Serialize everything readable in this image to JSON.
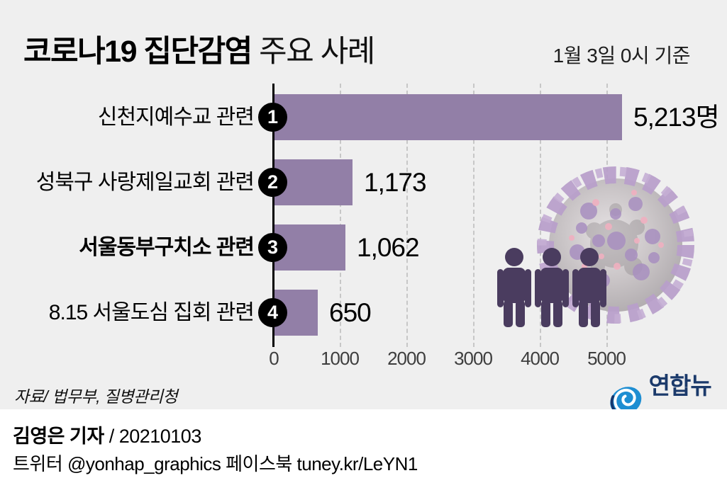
{
  "header": {
    "title_bold": "코로나19 집단감염",
    "title_regular": " 주요 사례",
    "date_note": "1월 3일 0시 기준"
  },
  "chart_data": {
    "type": "bar",
    "orientation": "horizontal",
    "title": "코로나19 집단감염 주요 사례",
    "unit": "명",
    "categories": [
      "신천지예수교 관련",
      "성북구 사랑제일교회 관련",
      "서울동부구치소 관련",
      "8.15 서울도심 집회 관련"
    ],
    "values": [
      5213,
      1173,
      1062,
      650
    ],
    "rows": [
      {
        "rank": "1",
        "label": "신천지예수교 관련",
        "value": 5213,
        "value_label": "5,213명",
        "emphasis": false
      },
      {
        "rank": "2",
        "label": "성북구 사랑제일교회 관련",
        "value": 1173,
        "value_label": "1,173",
        "emphasis": false
      },
      {
        "rank": "3",
        "label": "서울동부구치소 관련",
        "value": 1062,
        "value_label": "1,062",
        "emphasis": true
      },
      {
        "rank": "4",
        "label": "8.15 서울도심 집회 관련",
        "value": 650,
        "value_label": "650",
        "emphasis": false
      }
    ],
    "x_ticks": [
      "0",
      "1000",
      "2000",
      "3000",
      "4000",
      "5000"
    ],
    "xlim": [
      0,
      5500
    ],
    "grid": true,
    "legend": false,
    "bar_color": "#927fa7"
  },
  "source": "자료/ 법무부, 질병관리청",
  "logo": {
    "name": "연합뉴스"
  },
  "footer": {
    "byline_bold": "김영은 기자",
    "byline_date": " / 20210103",
    "social": "트위터 @yonhap_graphics  페이스북 tuney.kr/LeYN1"
  },
  "colors": {
    "background": "#efefef",
    "bar": "#927fa7",
    "person": "#4a3c5f",
    "virus_spike": "#b89fca",
    "virus_body": "#c9c4c6",
    "virus_pink": "#f0b0c0",
    "logo_blue": "#1e8ed2",
    "logo_navy": "#1b3a6b",
    "badge": "#000000"
  }
}
